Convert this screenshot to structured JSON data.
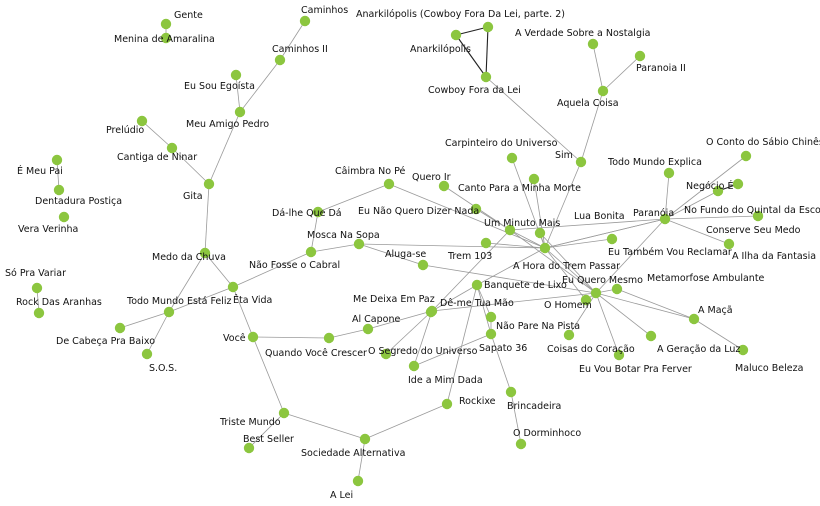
{
  "graph": {
    "node_color": "#8cc63f",
    "edge_color": "#9a9a9a",
    "strong_edge_color": "#222222",
    "background": "#ffffff",
    "nodes": [
      {
        "id": "gente",
        "label": "Gente"
      },
      {
        "id": "menina",
        "label": "Menina de Amaralina"
      },
      {
        "id": "caminhos",
        "label": "Caminhos"
      },
      {
        "id": "caminhos2",
        "label": "Caminhos II"
      },
      {
        "id": "egoista",
        "label": "Eu Sou Egoísta"
      },
      {
        "id": "amigo",
        "label": "Meu Amigo Pedro"
      },
      {
        "id": "preludio",
        "label": "Prelúdio"
      },
      {
        "id": "cantiga",
        "label": "Cantiga de Ninar"
      },
      {
        "id": "gita",
        "label": "Gita"
      },
      {
        "id": "emeupai",
        "label": "É Meu Pai"
      },
      {
        "id": "dentadura",
        "label": "Dentadura Postiça"
      },
      {
        "id": "vera",
        "label": "Vera Verinha"
      },
      {
        "id": "soprav",
        "label": "Só Pra Variar"
      },
      {
        "id": "rock",
        "label": "Rock Das Aranhas"
      },
      {
        "id": "medo",
        "label": "Medo da Chuva"
      },
      {
        "id": "todomundofeliz",
        "label": "Todo Mundo Está Feliz"
      },
      {
        "id": "etavida",
        "label": "Êta Vida"
      },
      {
        "id": "decabeca",
        "label": "De Cabeça Pra Baixo"
      },
      {
        "id": "sos",
        "label": "S.O.S."
      },
      {
        "id": "voce",
        "label": "Você"
      },
      {
        "id": "quando",
        "label": "Quando Você Crescer"
      },
      {
        "id": "triste",
        "label": "Triste Mundo"
      },
      {
        "id": "bestseller",
        "label": "Best Seller"
      },
      {
        "id": "sociedade",
        "label": "Sociedade Alternativa"
      },
      {
        "id": "alei",
        "label": "A Lei"
      },
      {
        "id": "rockixe",
        "label": "Rockixe"
      },
      {
        "id": "ideamim",
        "label": "Ide a Mim Dada"
      },
      {
        "id": "segredo",
        "label": "O Segredo do Universo"
      },
      {
        "id": "alcapone",
        "label": "Al Capone"
      },
      {
        "id": "medeixa",
        "label": "Me Deixa Em Paz"
      },
      {
        "id": "demetua",
        "label": "Dê-me Tua Mão"
      },
      {
        "id": "banquete",
        "label": "Banquete de Lixo"
      },
      {
        "id": "naopare",
        "label": "Não Pare Na Pista"
      },
      {
        "id": "sapato",
        "label": "Sapato 36"
      },
      {
        "id": "brincadeira",
        "label": "Brincadeira"
      },
      {
        "id": "dorminhoco",
        "label": "O Dorminhoco"
      },
      {
        "id": "cambra",
        "label": "Câimbra No Pé"
      },
      {
        "id": "dalhe",
        "label": "Dá-lhe Que Dá"
      },
      {
        "id": "mosca",
        "label": "Mosca Na Sopa"
      },
      {
        "id": "naofosse",
        "label": "Não Fosse o Cabral"
      },
      {
        "id": "alugase",
        "label": "Aluga-se"
      },
      {
        "id": "querair",
        "label": "Quero Ir"
      },
      {
        "id": "naoquero",
        "label": "Eu Não Quero Dizer Nada"
      },
      {
        "id": "trem103",
        "label": "Trem 103"
      },
      {
        "id": "umminuto",
        "label": "Um Minuto Mais"
      },
      {
        "id": "cantopara",
        "label": "Canto Para a Minha Morte"
      },
      {
        "id": "carpinteiro",
        "label": "Carpinteiro do Universo"
      },
      {
        "id": "sim",
        "label": "Sim"
      },
      {
        "id": "aquelacoisa",
        "label": "Aquela Coisa"
      },
      {
        "id": "averdade",
        "label": "A Verdade Sobre a Nostalgia"
      },
      {
        "id": "paranoia2",
        "label": "Paranoia II"
      },
      {
        "id": "anark2",
        "label": "Anarkilópolis (Cowboy Fora Da Lei, parte. 2)"
      },
      {
        "id": "anark",
        "label": "Anarkilópolis"
      },
      {
        "id": "cowboy",
        "label": "Cowboy Fora da Lei"
      },
      {
        "id": "luabonita",
        "label": "Lua Bonita"
      },
      {
        "id": "ahora",
        "label": "A Hora do Trem Passar"
      },
      {
        "id": "paranoia",
        "label": "Paranóia"
      },
      {
        "id": "todomundoexplica",
        "label": "Todo Mundo Explica"
      },
      {
        "id": "negocio",
        "label": "Negócio É"
      },
      {
        "id": "ocontodosabio",
        "label": "O Conto do Sábio Chinês"
      },
      {
        "id": "nofundo",
        "label": "No Fundo do Quintal da Escola"
      },
      {
        "id": "conserve",
        "label": "Conserve Seu Medo"
      },
      {
        "id": "ailha",
        "label": "A Ilha da Fantasia"
      },
      {
        "id": "eutambem",
        "label": "Eu Também Vou Reclamar"
      },
      {
        "id": "euqueromesmo",
        "label": "Eu Quero Mesmo"
      },
      {
        "id": "metamorfose",
        "label": "Metamorfose Ambulante"
      },
      {
        "id": "ohomem",
        "label": "O Homem"
      },
      {
        "id": "coisasdocoracao",
        "label": "Coisas do Coração"
      },
      {
        "id": "euvoubotar",
        "label": "Eu Vou Botar Pra Ferver"
      },
      {
        "id": "ageracao",
        "label": "A Geração da Luz"
      },
      {
        "id": "amaca",
        "label": "A Maçã"
      },
      {
        "id": "maluco",
        "label": "Maluco Beleza"
      }
    ]
  }
}
